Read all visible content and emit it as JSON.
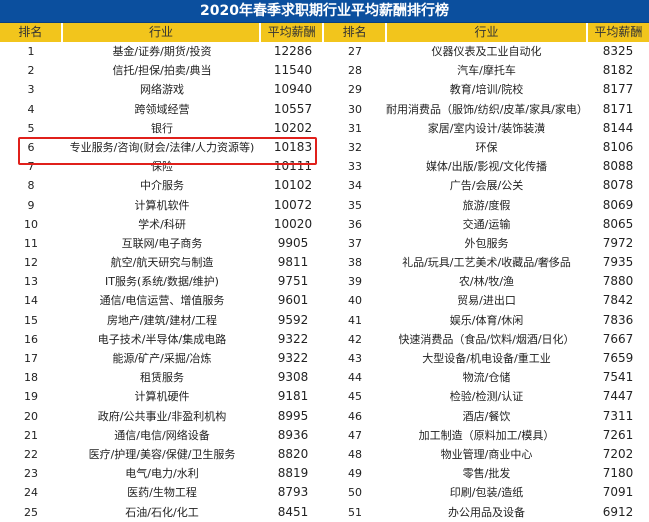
{
  "title": "2020年春季求职期行业平均薪酬排行榜",
  "headers": {
    "rank": "排名",
    "industry": "行业",
    "salary": "平均薪酬"
  },
  "highlight_color": "#e0201b",
  "left": [
    [
      "1",
      "基金/证券/期货/投资",
      "12286"
    ],
    [
      "2",
      "信托/担保/拍卖/典当",
      "11540"
    ],
    [
      "3",
      "网络游戏",
      "10940"
    ],
    [
      "4",
      "跨领域经营",
      "10557"
    ],
    [
      "5",
      "银行",
      "10202"
    ],
    [
      "6",
      "专业服务/咨询(财会/法律/人力资源等)",
      "10183"
    ],
    [
      "7",
      "保险",
      "10111"
    ],
    [
      "8",
      "中介服务",
      "10102"
    ],
    [
      "9",
      "计算机软件",
      "10072"
    ],
    [
      "10",
      "学术/科研",
      "10020"
    ],
    [
      "11",
      "互联网/电子商务",
      "9905"
    ],
    [
      "12",
      "航空/航天研究与制造",
      "9811"
    ],
    [
      "13",
      "IT服务(系统/数据/维护)",
      "9751"
    ],
    [
      "14",
      "通信/电信运营、增值服务",
      "9601"
    ],
    [
      "15",
      "房地产/建筑/建材/工程",
      "9592"
    ],
    [
      "16",
      "电子技术/半导体/集成电路",
      "9322"
    ],
    [
      "17",
      "能源/矿产/采掘/冶炼",
      "9322"
    ],
    [
      "18",
      "租赁服务",
      "9308"
    ],
    [
      "19",
      "计算机硬件",
      "9181"
    ],
    [
      "20",
      "政府/公共事业/非盈利机构",
      "8995"
    ],
    [
      "21",
      "通信/电信/网络设备",
      "8936"
    ],
    [
      "22",
      "医疗/护理/美容/保健/卫生服务",
      "8820"
    ],
    [
      "23",
      "电气/电力/水利",
      "8819"
    ],
    [
      "24",
      "医药/生物工程",
      "8793"
    ],
    [
      "25",
      "石油/石化/化工",
      "8451"
    ]
  ],
  "right": [
    [
      "27",
      "仪器仪表及工业自动化",
      "8325"
    ],
    [
      "28",
      "汽车/摩托车",
      "8182"
    ],
    [
      "29",
      "教育/培训/院校",
      "8177"
    ],
    [
      "30",
      "耐用消费品（服饰/纺织/皮革/家具/家电）",
      "8171"
    ],
    [
      "31",
      "家居/室内设计/装饰装潢",
      "8144"
    ],
    [
      "32",
      "环保",
      "8106"
    ],
    [
      "33",
      "媒体/出版/影视/文化传播",
      "8088"
    ],
    [
      "34",
      "广告/会展/公关",
      "8078"
    ],
    [
      "35",
      "旅游/度假",
      "8069"
    ],
    [
      "36",
      "交通/运输",
      "8065"
    ],
    [
      "37",
      "外包服务",
      "7972"
    ],
    [
      "38",
      "礼品/玩具/工艺美术/收藏品/奢侈品",
      "7935"
    ],
    [
      "39",
      "农/林/牧/渔",
      "7880"
    ],
    [
      "40",
      "贸易/进出口",
      "7842"
    ],
    [
      "41",
      "娱乐/体育/休闲",
      "7836"
    ],
    [
      "42",
      "快速消费品（食品/饮料/烟酒/日化）",
      "7667"
    ],
    [
      "43",
      "大型设备/机电设备/重工业",
      "7659"
    ],
    [
      "44",
      "物流/仓储",
      "7541"
    ],
    [
      "45",
      "检验/检测/认证",
      "7447"
    ],
    [
      "46",
      "酒店/餐饮",
      "7311"
    ],
    [
      "47",
      "加工制造（原料加工/模具）",
      "7261"
    ],
    [
      "48",
      "物业管理/商业中心",
      "7202"
    ],
    [
      "49",
      "零售/批发",
      "7180"
    ],
    [
      "50",
      "印刷/包装/造纸",
      "7091"
    ],
    [
      "51",
      "办公用品及设备",
      "6912"
    ]
  ]
}
